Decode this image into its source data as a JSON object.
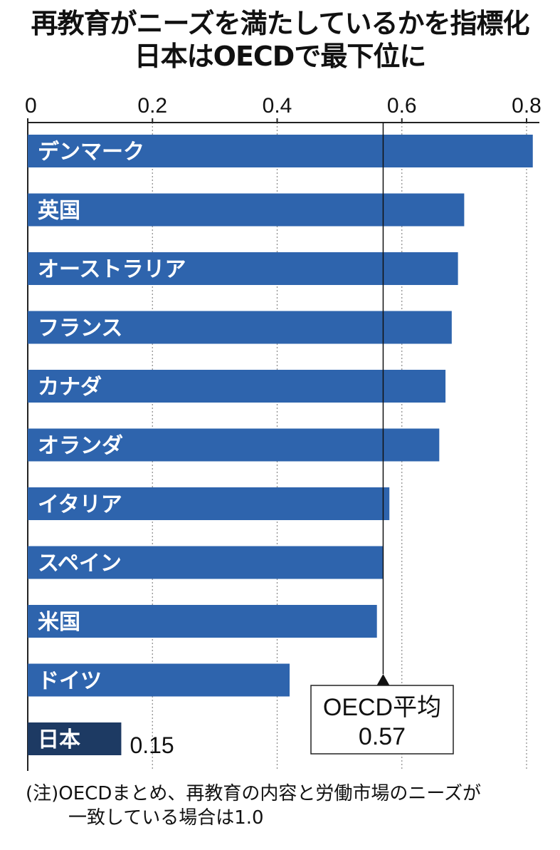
{
  "title": {
    "line1": "再教育がニーズを満たしているかを指標化",
    "line2": "日本はOECDで最下位に"
  },
  "colors": {
    "bar": "#2e64ad",
    "highlight_bar": "#1d3a63",
    "axis": "#222222",
    "gridline": "#888888"
  },
  "chart_data": {
    "type": "bar",
    "orientation": "horizontal",
    "categories": [
      "デンマーク",
      "英国",
      "オーストラリア",
      "フランス",
      "カナダ",
      "オランダ",
      "イタリア",
      "スペイン",
      "米国",
      "ドイツ",
      "日本"
    ],
    "values": [
      0.81,
      0.7,
      0.69,
      0.68,
      0.67,
      0.66,
      0.58,
      0.57,
      0.56,
      0.42,
      0.15
    ],
    "highlight": "日本",
    "xlim": [
      0,
      0.8
    ],
    "x_ticks": [
      "0",
      "0.2",
      "0.4",
      "0.6",
      "0.8"
    ],
    "x_tick_values": [
      0,
      0.2,
      0.4,
      0.6,
      0.8
    ],
    "grid": true,
    "value_labels": {
      "日本": "0.15"
    },
    "reference_line": {
      "value": 0.57,
      "label_line1": "OECD平均",
      "label_line2": "0.57"
    }
  },
  "note": {
    "line1": "(注)OECDまとめ、再教育の内容と労働市場のニーズが",
    "line2": "一致している場合は1.0"
  }
}
